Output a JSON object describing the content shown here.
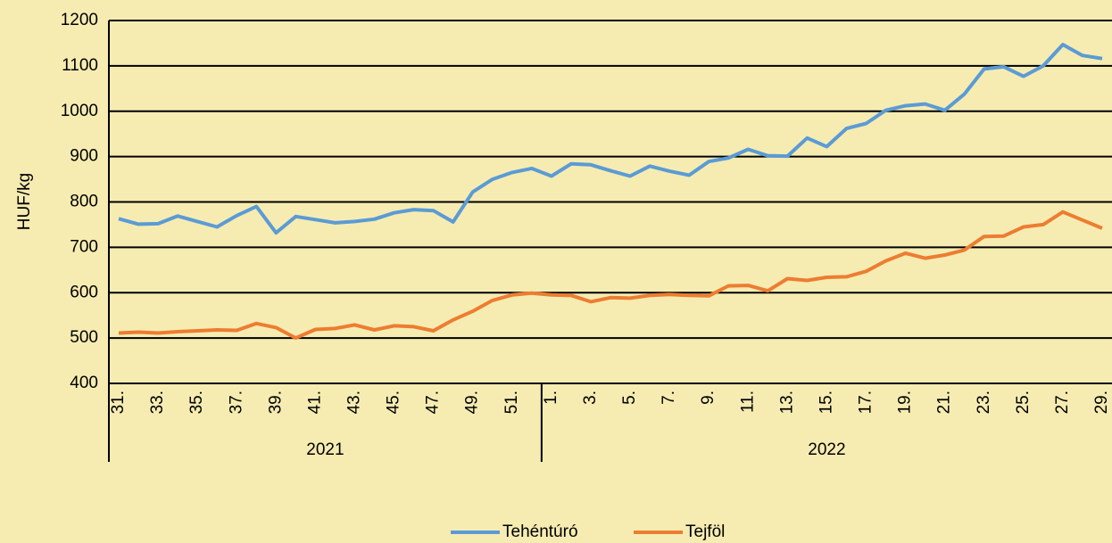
{
  "chart_data": {
    "type": "line",
    "y_label": "HUF/kg",
    "categories": [
      "31.",
      null,
      "33.",
      null,
      "35.",
      null,
      "37.",
      null,
      "39.",
      null,
      "41.",
      null,
      "43.",
      null,
      "45.",
      null,
      "47.",
      null,
      "49.",
      null,
      "51.",
      null,
      "1.",
      null,
      "3.",
      null,
      "5.",
      null,
      "7.",
      null,
      "9.",
      null,
      "11.",
      null,
      "13.",
      null,
      "15.",
      null,
      "17.",
      null,
      "19.",
      null,
      "21.",
      null,
      "23.",
      null,
      "25.",
      null,
      "27.",
      null,
      "29."
    ],
    "year_groups": [
      {
        "label": "2021",
        "count": 22
      },
      {
        "label": "2022",
        "count": 29
      }
    ],
    "series": [
      {
        "name": "Tehéntúró",
        "color": "#5b9bd5",
        "values": [
          763,
          751,
          752,
          769,
          757,
          745,
          770,
          790,
          732,
          768,
          761,
          754,
          757,
          762,
          776,
          783,
          781,
          756,
          822,
          850,
          865,
          874,
          857,
          884,
          882,
          869,
          857,
          879,
          868,
          859,
          889,
          897,
          916,
          902,
          901,
          941,
          922,
          962,
          973,
          1002,
          1012,
          1016,
          1002,
          1038,
          1093,
          1098,
          1077,
          1100,
          1147,
          1123,
          1116
        ]
      },
      {
        "name": "Tejföl",
        "color": "#ed7d31",
        "values": [
          511,
          513,
          511,
          514,
          516,
          518,
          517,
          532,
          523,
          500,
          519,
          521,
          529,
          518,
          527,
          525,
          516,
          540,
          559,
          583,
          595,
          599,
          595,
          594,
          580,
          589,
          588,
          594,
          596,
          594,
          593,
          615,
          616,
          604,
          631,
          627,
          634,
          635,
          647,
          670,
          687,
          676,
          683,
          694,
          724,
          725,
          745,
          750,
          778,
          760,
          742
        ]
      }
    ],
    "ylim": [
      400,
      1200
    ],
    "yticks": [
      400,
      500,
      600,
      700,
      800,
      900,
      1000,
      1100,
      1200
    ],
    "grid": true,
    "legend": "bottom"
  }
}
